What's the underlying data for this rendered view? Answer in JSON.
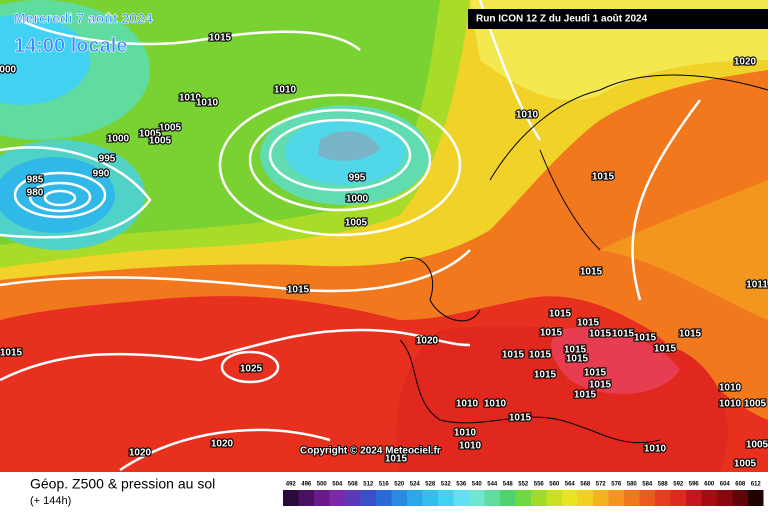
{
  "header": {
    "date": "Mercredi 7 août 2024",
    "time": "14:00 locale",
    "run": "Run ICON 12 Z du Jeudi 1 août 2024"
  },
  "copyright": "Copyright © 2024 Meteociel.fr",
  "footer": {
    "title": "Géop. Z500 & pression au sol",
    "lead": "(+ 144h)"
  },
  "isobar_labels": [
    1015,
    1000,
    1010,
    1010,
    1010,
    1020,
    1005,
    1000,
    1005,
    1005,
    995,
    990,
    985,
    980,
    1010,
    995,
    1000,
    1005,
    1015,
    1015,
    1015,
    1011,
    1015,
    1015,
    1015,
    1015,
    1015,
    1015,
    1015,
    1015,
    1020,
    1015,
    1015,
    1015,
    1015,
    1015,
    1015,
    1015,
    1015,
    1025,
    1010,
    1010,
    1005,
    1010,
    1010,
    1015,
    1010,
    1010,
    1020,
    1020,
    1010,
    1015,
    1005,
    1015,
    1005
  ],
  "colorbar": {
    "labels": [
      492,
      496,
      500,
      504,
      508,
      512,
      516,
      520,
      524,
      528,
      532,
      536,
      540,
      544,
      548,
      552,
      556,
      560,
      564,
      568,
      572,
      576,
      580,
      584,
      588,
      592,
      596,
      600,
      604,
      608,
      612
    ],
    "colors": [
      "#2a0a3a",
      "#4a1060",
      "#6a1a8a",
      "#7a2aa8",
      "#5a3ab8",
      "#3a50c8",
      "#2a6ad8",
      "#2a8ae0",
      "#2aa8e8",
      "#30c0ec",
      "#40d2f0",
      "#60e0f0",
      "#70e6d0",
      "#60dca0",
      "#50d270",
      "#70d840",
      "#a0dc28",
      "#c8e020",
      "#e8e420",
      "#f0d020",
      "#f4b41e",
      "#f4961e",
      "#f2781e",
      "#ee5a1e",
      "#e83c1e",
      "#e0281e",
      "#c8141e",
      "#a80a14",
      "#880810",
      "#60060a",
      "#200404"
    ]
  }
}
